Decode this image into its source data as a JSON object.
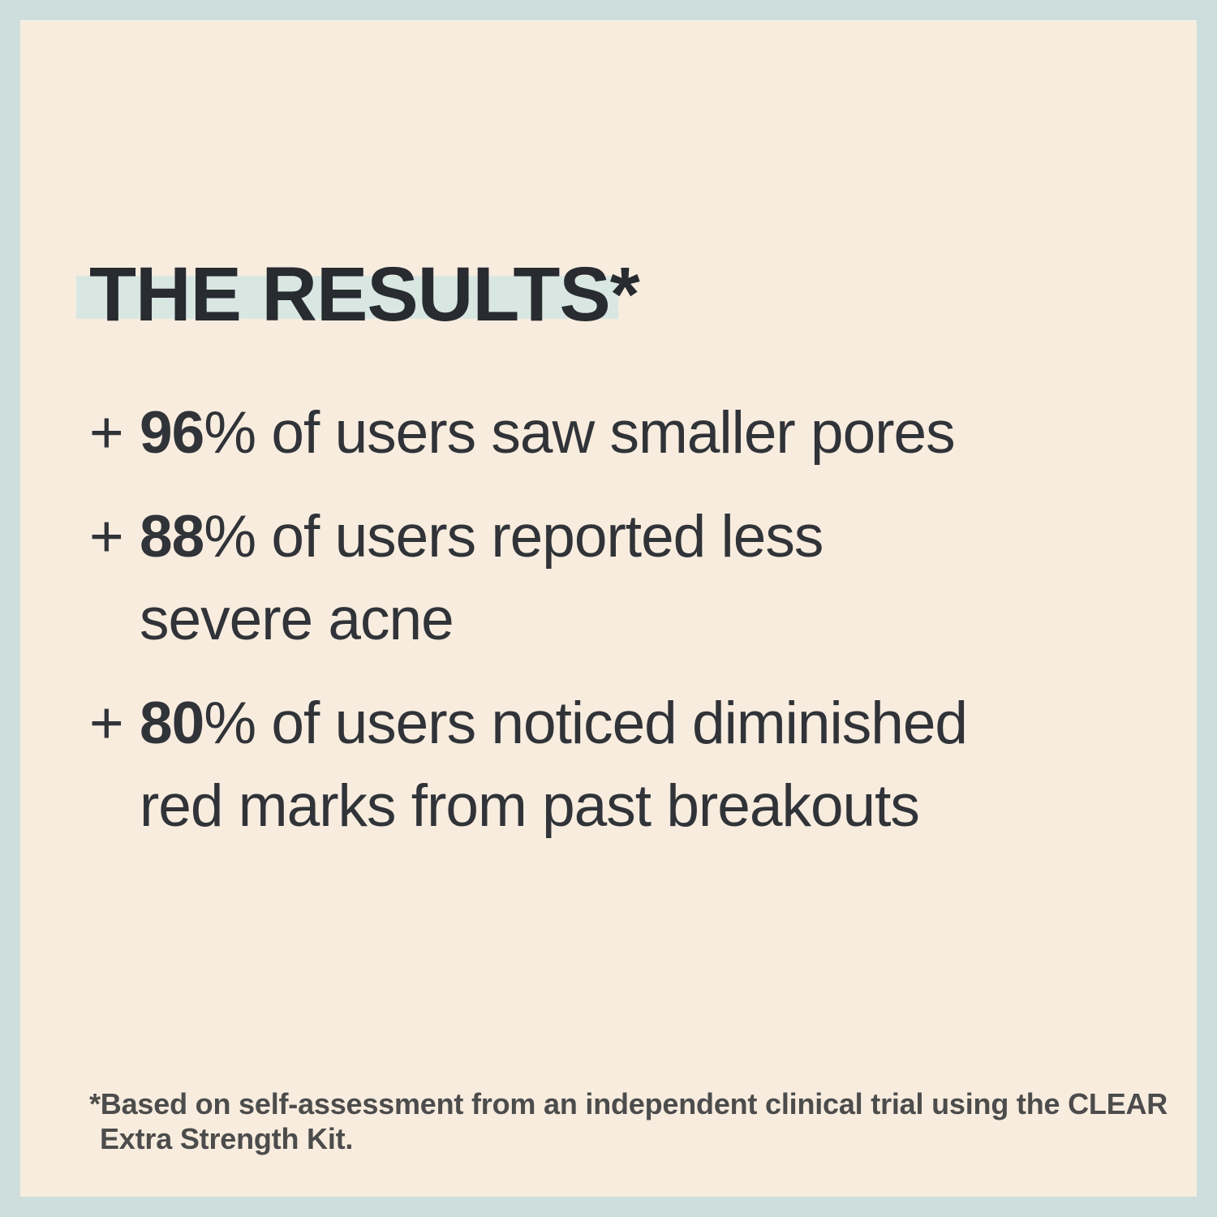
{
  "colors": {
    "bg": "#cddedc",
    "panel": "#f7ecde",
    "highlight": "#d9e7e3",
    "ink-title": "#282b30",
    "ink-body": "#303338",
    "ink-footnote": "#4c4c4c"
  },
  "title": {
    "text": "THE RESULTS*"
  },
  "results": [
    {
      "marker": "+",
      "stat": "96",
      "unit": "%",
      "line1": "of users saw smaller pores",
      "line2": ""
    },
    {
      "marker": "+",
      "stat": "88",
      "unit": "%",
      "line1": "of users reported less",
      "line2": "severe acne"
    },
    {
      "marker": "+",
      "stat": "80",
      "unit": "%",
      "line1": "of users noticed diminished",
      "line2": "red marks from past breakouts"
    }
  ],
  "footnote": {
    "line1": "*Based on self-assessment from an independent clinical trial using the CLEAR",
    "line2": "Extra Strength Kit."
  }
}
